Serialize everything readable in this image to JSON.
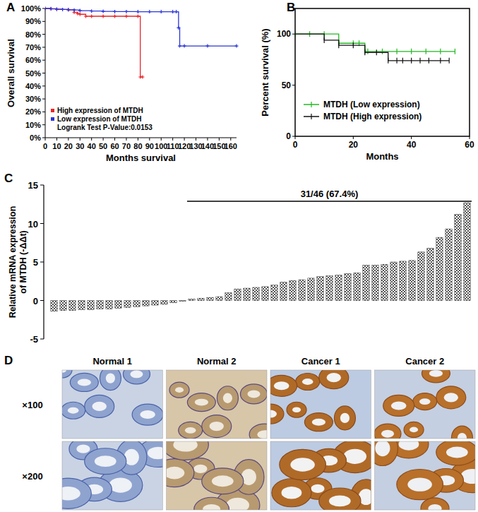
{
  "chart_data": [
    {
      "type": "line",
      "title": "A",
      "xlabel": "Months survival",
      "ylabel": "Overall survival",
      "xlim": [
        0,
        165
      ],
      "xticks": [
        0,
        10,
        20,
        30,
        40,
        50,
        60,
        70,
        80,
        90,
        100,
        110,
        120,
        130,
        140,
        150,
        160
      ],
      "ylim": [
        0,
        100
      ],
      "yticks": [
        {
          "value": 0,
          "label": "0%"
        },
        {
          "value": 10,
          "label": "10%"
        },
        {
          "value": 20,
          "label": "20%"
        },
        {
          "value": 30,
          "label": "30%"
        },
        {
          "value": 40,
          "label": "40%"
        },
        {
          "value": 50,
          "label": "50%"
        },
        {
          "value": 60,
          "label": "60%"
        },
        {
          "value": 70,
          "label": "70%"
        },
        {
          "value": 80,
          "label": "80%"
        },
        {
          "value": 90,
          "label": "90%"
        },
        {
          "value": 100,
          "label": "100%"
        }
      ],
      "legend": "lower-left",
      "annotations": [
        "Logrank Test P-Value:0.0153"
      ],
      "series": [
        {
          "name": "High expression of MTDH",
          "color": "#e8262a",
          "line_style": "step",
          "marker": "plus",
          "x": [
            0,
            5,
            10,
            20,
            25,
            28,
            30,
            35,
            40,
            50,
            60,
            70,
            80,
            82,
            84
          ],
          "values": [
            100,
            99.7,
            99.3,
            99,
            97,
            96,
            95.5,
            94,
            94,
            94,
            94,
            94,
            94,
            47,
            47
          ]
        },
        {
          "name": "Low expression of MTDH",
          "color": "#2a35d8",
          "line_style": "step",
          "marker": "plus",
          "x": [
            0,
            5,
            10,
            15,
            20,
            25,
            30,
            40,
            50,
            60,
            70,
            80,
            90,
            100,
            110,
            113,
            115,
            116,
            120,
            140,
            165
          ],
          "values": [
            100,
            99.8,
            99.5,
            99.2,
            99,
            98.8,
            98.3,
            98,
            97.8,
            97.6,
            97.6,
            97.5,
            97.5,
            97.5,
            97.5,
            97.5,
            85,
            71,
            71,
            71,
            71
          ]
        }
      ]
    },
    {
      "type": "line",
      "title": "B",
      "xlabel": "Months",
      "ylabel": "Percent survival (%)",
      "xlim": [
        0,
        60
      ],
      "xticks": [
        0,
        20,
        40,
        60
      ],
      "ylim": [
        0,
        125
      ],
      "yticks": [
        0,
        50,
        100
      ],
      "legend": "lower-left",
      "series": [
        {
          "name": "MTDH (Low expression)",
          "color": "#22b822",
          "line_style": "step",
          "marker": "tick",
          "x": [
            0,
            5,
            10,
            15,
            20,
            22,
            24,
            25,
            30,
            35,
            40,
            45,
            50,
            55
          ],
          "values": [
            100,
            100,
            100,
            91,
            91,
            91,
            83,
            83,
            83,
            83,
            83,
            83,
            83,
            83
          ]
        },
        {
          "name": "MTDH (High expression)",
          "color": "#111111",
          "line_style": "step",
          "marker": "tick",
          "x": [
            0,
            10,
            15,
            20,
            24,
            28,
            32,
            35,
            37,
            40,
            43,
            46,
            50,
            53
          ],
          "values": [
            100,
            94,
            89,
            89,
            82,
            82,
            74,
            74,
            74,
            74,
            74,
            74,
            74,
            74
          ]
        }
      ]
    },
    {
      "type": "bar",
      "title": "C",
      "ylabel": [
        "Relative mRNA expression",
        "of MTDH (-ΔΔt)"
      ],
      "ylim": [
        -5,
        15
      ],
      "yticks": [
        -5,
        0,
        5,
        10,
        15
      ],
      "color": "#555555",
      "tick_labels": "y",
      "annotations": [
        "31/46 (67.4%)"
      ],
      "categories": [
        null,
        null,
        null,
        null,
        null,
        null,
        null,
        null,
        null,
        null,
        null,
        null,
        null,
        null,
        null,
        null,
        null,
        null,
        null,
        null,
        null,
        null,
        null,
        null,
        null,
        null,
        null,
        null,
        null,
        null,
        null,
        null,
        null,
        null,
        null,
        null,
        null,
        null,
        null,
        null,
        null,
        null,
        null,
        null,
        null,
        null
      ],
      "values": [
        -1.4,
        -1.3,
        -1.3,
        -1.2,
        -1.2,
        -1.1,
        -1.1,
        -1.0,
        -0.9,
        -0.8,
        -0.7,
        -0.6,
        -0.5,
        -0.3,
        -0.1,
        0.2,
        0.3,
        0.4,
        0.5,
        1.0,
        1.5,
        1.6,
        1.7,
        1.8,
        2.0,
        2.4,
        2.6,
        2.7,
        2.9,
        3.1,
        3.2,
        3.3,
        3.5,
        3.6,
        4.6,
        4.6,
        4.7,
        5.0,
        5.1,
        5.2,
        6.3,
        6.8,
        8.2,
        9.3,
        11.2,
        12.7
      ]
    },
    {
      "type": "image_grid",
      "title": "D",
      "columns": [
        "Normal 1",
        "Normal 2",
        "Cancer 1",
        "Cancer 2"
      ],
      "rows": [
        "×100",
        "×200"
      ]
    }
  ]
}
